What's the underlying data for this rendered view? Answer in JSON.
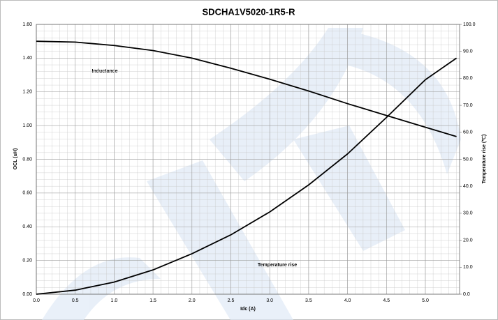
{
  "chart_data": {
    "type": "line",
    "title": "SDCHA1V5020-1R5-R",
    "x_label": "Idc (A)",
    "y_label": "OCL (uH)",
    "y2_label": "Temperature rise (℃)",
    "annotations": [
      "Inductance",
      "Temperature rise"
    ],
    "x": [
      0,
      0.5,
      1.0,
      1.5,
      2.0,
      2.5,
      3.0,
      3.5,
      4.0,
      4.5,
      5.0,
      5.4
    ],
    "series": [
      {
        "name": "Inductance",
        "color": "#000000",
        "values": [
          1.5,
          1.495,
          1.475,
          1.445,
          1.4,
          1.34,
          1.275,
          1.205,
          1.13,
          1.06,
          0.99,
          0.935
        ]
      },
      {
        "name": "Temperature rise",
        "color": "#000000",
        "axis": "y2",
        "values": [
          0,
          1.5,
          4.5,
          9,
          15,
          22,
          30.5,
          40.5,
          52,
          65.5,
          79.5,
          87.5
        ]
      }
    ],
    "xlim": [
      0,
      5.44
    ],
    "xticks": [
      {
        "value": 0,
        "label": "0.0"
      },
      0.5,
      {
        "value": 1,
        "label": "1.0"
      },
      1.5,
      {
        "value": 2,
        "label": "2.0"
      },
      2.5,
      {
        "value": 3,
        "label": "3.0"
      },
      3.5,
      {
        "value": 4,
        "label": "4.0"
      },
      4.5,
      {
        "value": 5,
        "label": "5.0"
      }
    ],
    "ylim": [
      0,
      1.6
    ],
    "yticks": [
      {
        "value": 0,
        "label": "0.00"
      },
      {
        "value": 0.2,
        "label": "0.20"
      },
      {
        "value": 0.4,
        "label": "0.40"
      },
      {
        "value": 0.6,
        "label": "0.60"
      },
      {
        "value": 0.8,
        "label": "0.80"
      },
      {
        "value": 1.0,
        "label": "1.00"
      },
      {
        "value": 1.2,
        "label": "1.20"
      },
      {
        "value": 1.4,
        "label": "1.40"
      },
      {
        "value": 1.6,
        "label": "1.60"
      }
    ],
    "y2lim": [
      0,
      100
    ],
    "y2ticks": [
      {
        "value": 0,
        "label": "0.0"
      },
      {
        "value": 10,
        "label": "10.0"
      },
      {
        "value": 20,
        "label": "20.0"
      },
      {
        "value": 30,
        "label": "30.0"
      },
      {
        "value": 40,
        "label": "40.0"
      },
      {
        "value": 50,
        "label": "50.0"
      },
      {
        "value": 60,
        "label": "60.0"
      },
      {
        "value": 70,
        "label": "70.0"
      },
      {
        "value": 80,
        "label": "80.0"
      },
      {
        "value": 90,
        "label": "90.0"
      },
      {
        "value": 100,
        "label": "100.0"
      }
    ],
    "grid": true
  }
}
